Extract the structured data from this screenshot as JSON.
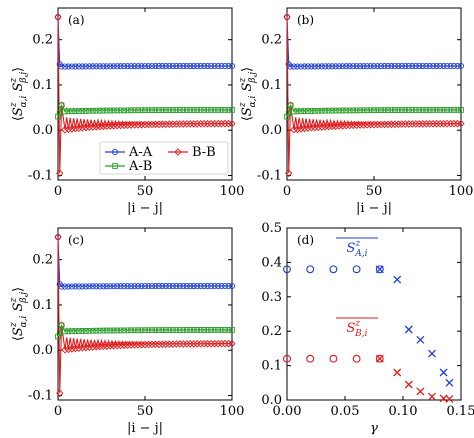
{
  "chart_data": [
    {
      "panel": "(a)",
      "type": "line",
      "ylabel": "⟨S^z_{α,i} S^z_{β,j}⟩",
      "xlabel": "|i − j|",
      "xlim": [
        0,
        100
      ],
      "ylim": [
        -0.11,
        0.27
      ],
      "xticks": [
        0,
        50,
        100
      ],
      "yticks": [
        -0.1,
        0.0,
        0.1,
        0.2
      ],
      "legend": {
        "placement": "bottom-left",
        "entries": [
          "A-A",
          "B-B",
          "A-B"
        ]
      },
      "series": [
        {
          "name": "A-A",
          "color": "#1f3fd6",
          "marker": "circle",
          "start": 0.25,
          "plateau": 0.142
        },
        {
          "name": "B-B",
          "color": "#e31a1c",
          "marker": "diamond",
          "start": 0.25,
          "dip": -0.095,
          "plateau": 0.015
        },
        {
          "name": "A-B",
          "color": "#2e9d2e",
          "marker": "square",
          "start": 0.03,
          "plateau": 0.045
        }
      ]
    },
    {
      "panel": "(b)",
      "type": "line",
      "ylabel": "⟨S^z_{α,i} S^z_{β,j}⟩",
      "xlabel": "|i − j|",
      "xlim": [
        0,
        100
      ],
      "ylim": [
        -0.11,
        0.27
      ],
      "xticks": [
        0,
        50,
        100
      ],
      "yticks": [
        -0.1,
        0.0,
        0.1,
        0.2
      ],
      "series": [
        {
          "name": "A-A",
          "color": "#1f3fd6",
          "marker": "circle",
          "start": 0.25,
          "plateau": 0.142
        },
        {
          "name": "B-B",
          "color": "#e31a1c",
          "marker": "diamond",
          "start": 0.25,
          "dip": -0.095,
          "plateau": 0.015
        },
        {
          "name": "A-B",
          "color": "#2e9d2e",
          "marker": "square",
          "start": 0.03,
          "plateau": 0.045
        }
      ]
    },
    {
      "panel": "(c)",
      "type": "line",
      "ylabel": "⟨S^z_{α,i} S^z_{β,j}⟩",
      "xlabel": "|i − j|",
      "xlim": [
        0,
        100
      ],
      "ylim": [
        -0.11,
        0.27
      ],
      "xticks": [
        0,
        50,
        100
      ],
      "yticks": [
        -0.1,
        0.0,
        0.1,
        0.2
      ],
      "series": [
        {
          "name": "A-A",
          "color": "#1f3fd6",
          "marker": "circle",
          "start": 0.25,
          "plateau": 0.142
        },
        {
          "name": "B-B",
          "color": "#e31a1c",
          "marker": "diamond",
          "start": 0.25,
          "dip": -0.095,
          "plateau": 0.015
        },
        {
          "name": "A-B",
          "color": "#2e9d2e",
          "marker": "square",
          "start": 0.03,
          "plateau": 0.045
        }
      ]
    },
    {
      "panel": "(d)",
      "type": "scatter",
      "xlabel": "γ",
      "xlim": [
        0,
        0.15
      ],
      "ylim": [
        0,
        0.5
      ],
      "xticks": [
        0.0,
        0.05,
        0.1,
        0.15
      ],
      "xtick_labels": [
        "0.00",
        "0.05",
        "0.10",
        "0.15"
      ],
      "yticks": [
        0,
        0.1,
        0.2,
        0.3,
        0.4,
        0.5
      ],
      "ytick_labels": [
        "0.0",
        "0.1",
        "0.2",
        "0.3",
        "0.4",
        "0.5"
      ],
      "annotations": [
        {
          "text": "S^z_{A,i}",
          "series": "A",
          "color": "#1f3fd6"
        },
        {
          "text": "S^z_{B,i}",
          "series": "B",
          "color": "#e31a1c"
        }
      ],
      "series": [
        {
          "name": "S^z_{A,i}",
          "color": "#1f3fd6",
          "circles": [
            [
              0.0,
              0.38
            ],
            [
              0.02,
              0.38
            ],
            [
              0.04,
              0.38
            ],
            [
              0.06,
              0.38
            ],
            [
              0.08,
              0.38
            ]
          ],
          "crosses": [
            [
              0.08,
              0.38
            ],
            [
              0.095,
              0.35
            ],
            [
              0.105,
              0.205
            ],
            [
              0.115,
              0.175
            ],
            [
              0.125,
              0.135
            ],
            [
              0.135,
              0.08
            ],
            [
              0.14,
              0.05
            ]
          ]
        },
        {
          "name": "S^z_{B,i}",
          "color": "#e31a1c",
          "circles": [
            [
              0.0,
              0.12
            ],
            [
              0.02,
              0.12
            ],
            [
              0.04,
              0.12
            ],
            [
              0.06,
              0.12
            ],
            [
              0.08,
              0.12
            ]
          ],
          "crosses": [
            [
              0.08,
              0.12
            ],
            [
              0.095,
              0.08
            ],
            [
              0.105,
              0.045
            ],
            [
              0.115,
              0.025
            ],
            [
              0.125,
              0.01
            ],
            [
              0.135,
              0.005
            ],
            [
              0.14,
              0.003
            ]
          ]
        }
      ]
    }
  ]
}
